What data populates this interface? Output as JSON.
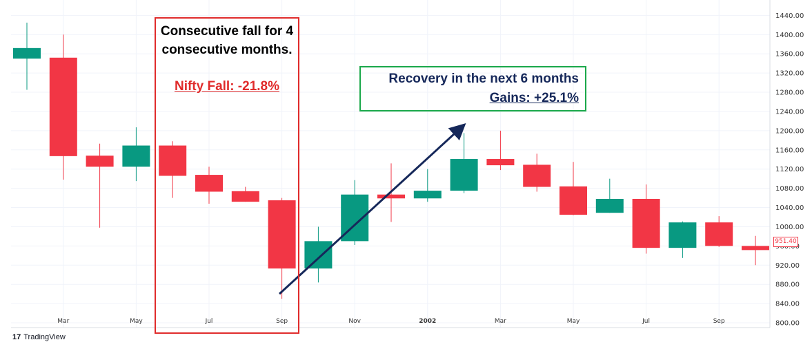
{
  "chart_data": {
    "type": "candlestick",
    "x_ticks": [
      "Mar",
      "May",
      "Jul",
      "Sep",
      "Nov",
      "2002",
      "Mar",
      "May",
      "Jul",
      "Sep"
    ],
    "y_ticks": [
      "1440.00",
      "1400.00",
      "1360.00",
      "1320.00",
      "1280.00",
      "1240.00",
      "1200.00",
      "1160.00",
      "1120.00",
      "1080.00",
      "1040.00",
      "1000.00",
      "960.00",
      "920.00",
      "880.00",
      "840.00",
      "800.00"
    ],
    "ylim": [
      790,
      1452
    ],
    "last_price_label": "951.40",
    "colors": {
      "up": "#089981",
      "down": "#f23645",
      "grid": "#f0f3fa"
    },
    "candles": [
      {
        "o": 1350,
        "h": 1425,
        "l": 1285,
        "c": 1372
      },
      {
        "o": 1352,
        "h": 1400,
        "l": 1098,
        "c": 1147
      },
      {
        "o": 1148,
        "h": 1173,
        "l": 998,
        "c": 1125
      },
      {
        "o": 1125,
        "h": 1207,
        "l": 1095,
        "c": 1169
      },
      {
        "o": 1169,
        "h": 1178,
        "l": 1060,
        "c": 1106
      },
      {
        "o": 1108,
        "h": 1125,
        "l": 1048,
        "c": 1073
      },
      {
        "o": 1074,
        "h": 1083,
        "l": 1052,
        "c": 1052
      },
      {
        "o": 1055,
        "h": 1060,
        "l": 850,
        "c": 913
      },
      {
        "o": 913,
        "h": 1000,
        "l": 884,
        "c": 970
      },
      {
        "o": 970,
        "h": 1097,
        "l": 962,
        "c": 1067
      },
      {
        "o": 1067,
        "h": 1132,
        "l": 1010,
        "c": 1059
      },
      {
        "o": 1059,
        "h": 1120,
        "l": 1052,
        "c": 1075
      },
      {
        "o": 1075,
        "h": 1195,
        "l": 1070,
        "c": 1141
      },
      {
        "o": 1141,
        "h": 1200,
        "l": 1118,
        "c": 1128
      },
      {
        "o": 1129,
        "h": 1152,
        "l": 1073,
        "c": 1083
      },
      {
        "o": 1084,
        "h": 1135,
        "l": 1024,
        "c": 1025
      },
      {
        "o": 1029,
        "h": 1100,
        "l": 1029,
        "c": 1058
      },
      {
        "o": 1058,
        "h": 1088,
        "l": 944,
        "c": 956
      },
      {
        "o": 956,
        "h": 1011,
        "l": 935,
        "c": 1009
      },
      {
        "o": 1009,
        "h": 1022,
        "l": 958,
        "c": 960
      },
      {
        "o": 960,
        "h": 981,
        "l": 920,
        "c": 951.4
      }
    ]
  },
  "annotations": {
    "fall_title": "Consecutive fall for 4 consecutive months.",
    "fall_stat": "Nifty Fall: -21.8%",
    "recovery_title": "Recovery in the next 6 months",
    "recovery_stat": "Gains: +25.1%"
  },
  "branding": {
    "logo_text": "TradingView",
    "logo_mark": "17"
  }
}
